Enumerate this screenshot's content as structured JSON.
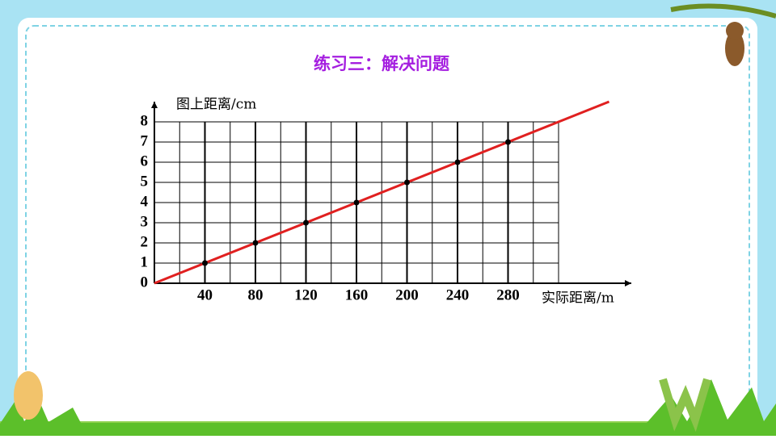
{
  "chart_data": {
    "type": "scatter",
    "title": "练习三：解决问题",
    "x_label": "实际距离/m",
    "y_label": "图上距离/cm",
    "xlim": [
      0,
      320
    ],
    "ylim": [
      0,
      8
    ],
    "xticks": [
      40,
      80,
      120,
      160,
      200,
      240,
      280
    ],
    "yticks": [
      0,
      1,
      2,
      3,
      4,
      5,
      6,
      7,
      8
    ],
    "grid": true,
    "series": [
      {
        "type": "scatter",
        "color": "#000000",
        "x": [
          40,
          80,
          120,
          160,
          200,
          240,
          280
        ],
        "values": [
          1,
          2,
          3,
          4,
          5,
          6,
          7
        ]
      },
      {
        "type": "line",
        "color": "#e02020",
        "x": [
          0,
          360
        ],
        "values": [
          0,
          9
        ]
      }
    ]
  }
}
